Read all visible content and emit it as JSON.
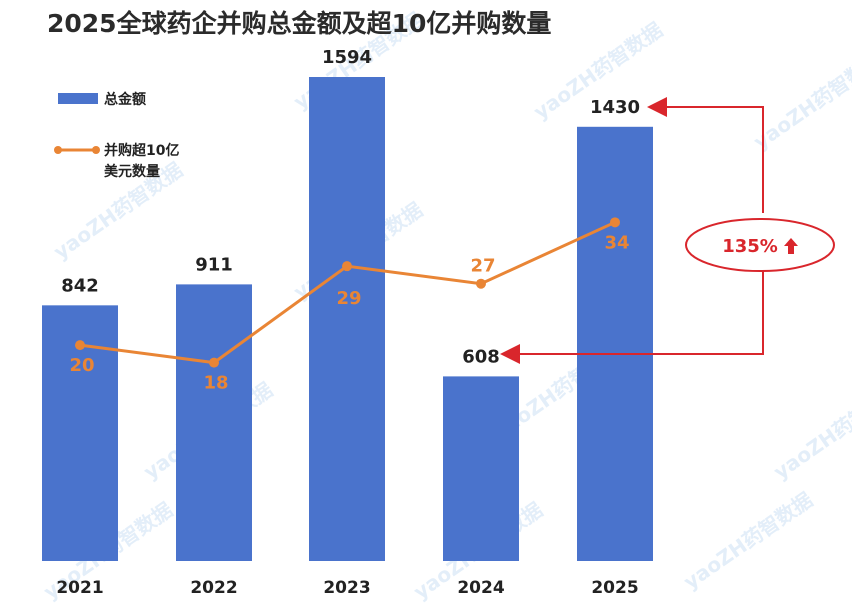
{
  "chart_data": {
    "type": "bar",
    "title": "2025全球药企并购总金额及超10亿并购数量",
    "categories": [
      "2021",
      "2022",
      "2023",
      "2024",
      "2025"
    ],
    "series": [
      {
        "name": "总金额",
        "type": "bar",
        "values": [
          842,
          911,
          1594,
          608,
          1430
        ],
        "color": "#4A73CC"
      },
      {
        "name": "并购超10亿美元数量",
        "type": "line",
        "values": [
          20,
          18,
          29,
          27,
          34
        ],
        "color": "#E98535"
      }
    ],
    "legend": {
      "bar": "总金额",
      "line_line1": "并购超10亿",
      "line_line2": "美元数量",
      "placement": "top-left"
    },
    "annotation": {
      "text": "135%",
      "icon": "up-arrow-icon",
      "color": "#d9262c"
    },
    "watermark": "yaoZH药智数据",
    "grid": false
  }
}
